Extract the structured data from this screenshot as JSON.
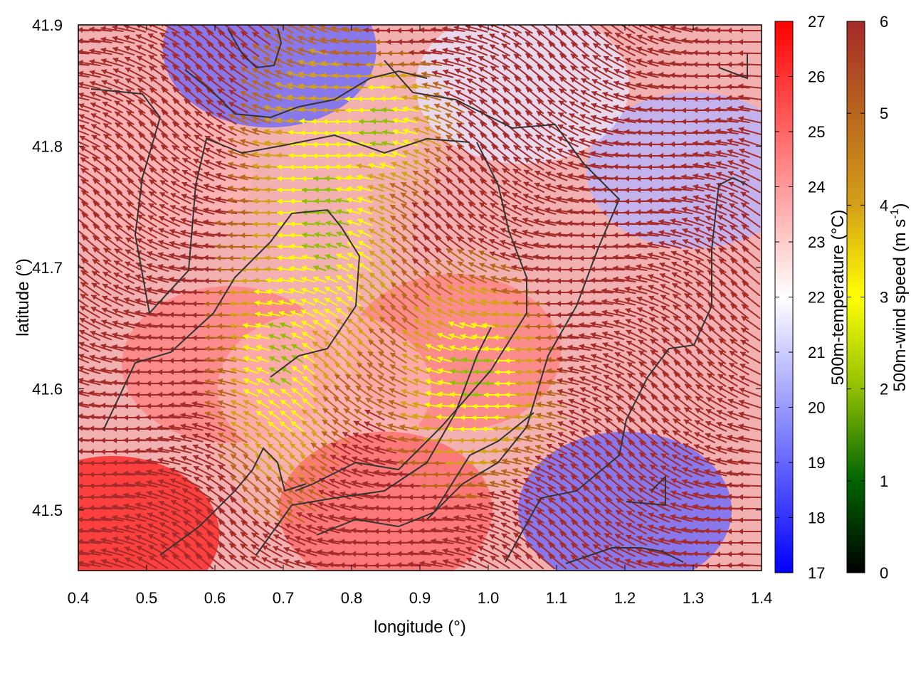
{
  "chart_data": {
    "type": "heatmap",
    "title": "",
    "xlabel": "longitude (°)",
    "ylabel": "latitude (°)",
    "xlim": [
      0.4,
      1.4
    ],
    "ylim": [
      1.45,
      41.9
    ],
    "x_ticks": [
      0.4,
      0.5,
      0.6,
      0.7,
      0.8,
      0.9,
      1.0,
      1.1,
      1.2,
      1.3,
      1.4
    ],
    "x_tick_labels": [
      "0.4",
      "0.5",
      "0.6",
      "0.7",
      "0.8",
      "0.9",
      "1.0",
      "1.1",
      "1.2",
      "1.3",
      "1.4"
    ],
    "y_ticks": [
      41.5,
      41.6,
      41.7,
      41.8,
      41.9
    ],
    "y_tick_labels": [
      "41.5",
      "41.6",
      "41.7",
      "41.8",
      "41.9"
    ],
    "grid": false,
    "legend": "none",
    "temperature": {
      "label": "500m-temperature (°C)",
      "range": [
        17,
        27
      ],
      "ticks": [
        17,
        18,
        19,
        20,
        21,
        22,
        23,
        24,
        25,
        26,
        27
      ],
      "tick_labels": [
        "17",
        "18",
        "19",
        "20",
        "21",
        "22",
        "23",
        "24",
        "25",
        "26",
        "27"
      ],
      "colors": [
        "#0000ff",
        "#ffffff",
        "#ff0000"
      ]
    },
    "wind_speed": {
      "label_main": "500m-wind speed (m s",
      "label_sup": "-1",
      "label_end": ")",
      "range": [
        0,
        6
      ],
      "ticks": [
        0,
        1,
        2,
        3,
        4,
        5,
        6
      ],
      "tick_labels": [
        "0",
        "1",
        "2",
        "3",
        "4",
        "5",
        "6"
      ],
      "colors": [
        "#000000",
        "#006400",
        "#8fbf00",
        "#ffff00",
        "#d4a017",
        "#b8661e",
        "#a52a2a"
      ]
    },
    "temperature_field_approx": [
      {
        "x": 0.45,
        "y": 41.48,
        "value": 26.5
      },
      {
        "x": 0.62,
        "y": 41.62,
        "value": 24.5
      },
      {
        "x": 0.5,
        "y": 41.78,
        "value": 23.5
      },
      {
        "x": 0.68,
        "y": 41.88,
        "value": 19.0
      },
      {
        "x": 0.95,
        "y": 41.63,
        "value": 24.5
      },
      {
        "x": 0.76,
        "y": 41.6,
        "value": 23.5
      },
      {
        "x": 1.2,
        "y": 41.5,
        "value": 19.0
      },
      {
        "x": 1.3,
        "y": 41.78,
        "value": 20.5
      },
      {
        "x": 1.05,
        "y": 41.85,
        "value": 21.5
      },
      {
        "x": 0.85,
        "y": 41.5,
        "value": 25.0
      }
    ]
  }
}
